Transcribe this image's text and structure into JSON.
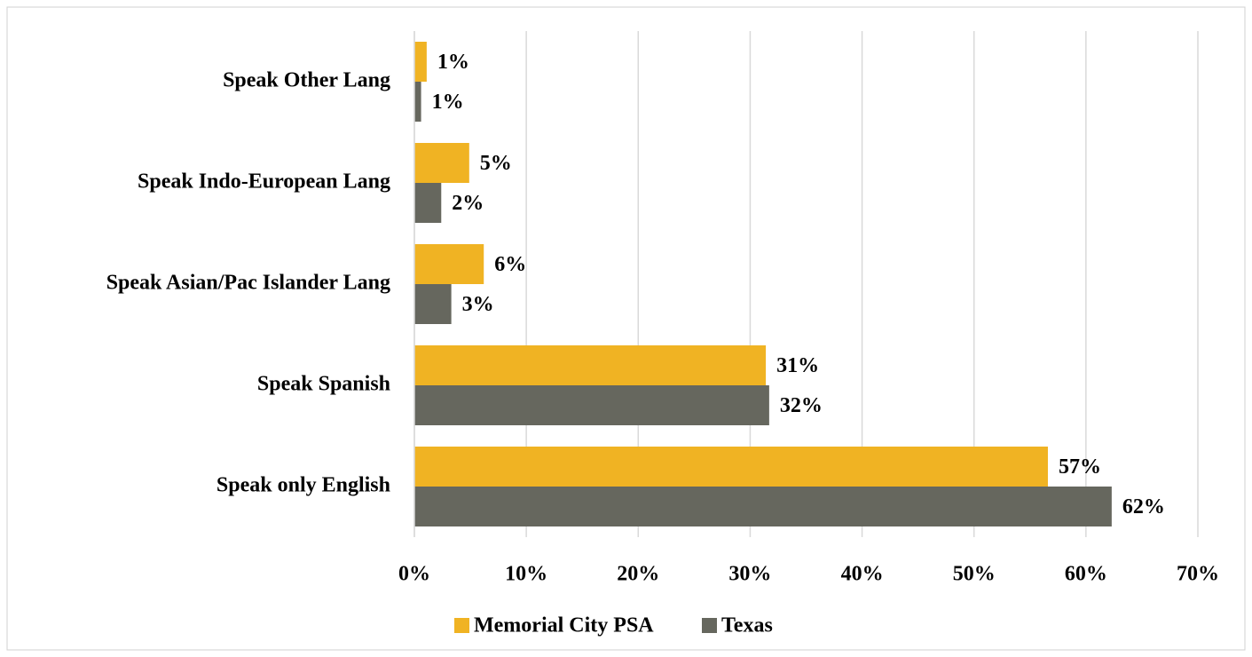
{
  "chart_data": {
    "type": "bar",
    "orientation": "horizontal",
    "categories": [
      "Speak Other Lang",
      "Speak Indo-European Lang",
      "Speak Asian/Pac Islander Lang",
      "Speak Spanish",
      "Speak only English"
    ],
    "series": [
      {
        "name": "Memorial City PSA",
        "color": "#f0b323",
        "values": [
          1.1,
          4.9,
          6.2,
          31.4,
          56.6
        ],
        "value_labels": [
          "1%",
          "5%",
          "6%",
          "31%",
          "57%"
        ]
      },
      {
        "name": "Texas",
        "color": "#66675e",
        "values": [
          0.6,
          2.4,
          3.3,
          31.7,
          62.3
        ],
        "value_labels": [
          "1%",
          "2%",
          "3%",
          "32%",
          "62%"
        ]
      }
    ],
    "xlim": [
      0,
      70
    ],
    "xticks": [
      {
        "value": 0,
        "label": "0%"
      },
      {
        "value": 10,
        "label": "10%"
      },
      {
        "value": 20,
        "label": "20%"
      },
      {
        "value": 30,
        "label": "30%"
      },
      {
        "value": 40,
        "label": "40%"
      },
      {
        "value": 50,
        "label": "50%"
      },
      {
        "value": 60,
        "label": "60%"
      },
      {
        "value": 70,
        "label": "70%"
      }
    ],
    "grid": true,
    "legend": "bottom"
  }
}
